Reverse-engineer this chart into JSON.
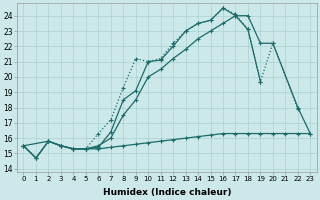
{
  "xlabel": "Humidex (Indice chaleur)",
  "bg_color": "#cce8e8",
  "line_color": "#1a6b6b",
  "grid_color": "#aad0d0",
  "xlim": [
    -0.5,
    23.5
  ],
  "ylim": [
    13.8,
    24.8
  ],
  "yticks": [
    14,
    15,
    16,
    17,
    18,
    19,
    20,
    21,
    22,
    23,
    24
  ],
  "xticks": [
    0,
    1,
    2,
    3,
    4,
    5,
    6,
    7,
    8,
    9,
    10,
    11,
    12,
    13,
    14,
    15,
    16,
    17,
    18,
    19,
    20,
    21,
    22,
    23
  ],
  "dotted_x": [
    0,
    1,
    2,
    3,
    4,
    5,
    6,
    7,
    8,
    9,
    10,
    11,
    12,
    13,
    14,
    15,
    16,
    17,
    18,
    19,
    20,
    22
  ],
  "dotted_y": [
    15.5,
    14.7,
    15.8,
    15.5,
    15.3,
    15.3,
    16.3,
    17.2,
    19.3,
    21.2,
    21.0,
    21.2,
    22.2,
    23.0,
    23.5,
    23.7,
    24.5,
    24.1,
    23.1,
    19.7,
    22.2,
    17.9
  ],
  "solid1_x": [
    0,
    1,
    2,
    3,
    4,
    5,
    6,
    7,
    8,
    9,
    10,
    11,
    12,
    13,
    14,
    15,
    16,
    17,
    18,
    19,
    20
  ],
  "solid1_y": [
    15.5,
    14.7,
    15.8,
    15.5,
    15.3,
    15.3,
    15.4,
    16.4,
    18.5,
    19.1,
    21.0,
    21.1,
    22.0,
    23.0,
    23.5,
    23.7,
    24.5,
    24.0,
    23.1,
    19.7,
    null
  ],
  "solid2_x": [
    0,
    2,
    3,
    4,
    5,
    6,
    7,
    8,
    9,
    10,
    11,
    12,
    13,
    14,
    15,
    16,
    17,
    18,
    19,
    20,
    22,
    23
  ],
  "solid2_y": [
    15.5,
    15.8,
    15.5,
    15.3,
    15.3,
    15.5,
    16.0,
    17.5,
    18.5,
    20.0,
    20.5,
    21.2,
    21.8,
    22.5,
    23.0,
    23.5,
    24.0,
    24.0,
    22.2,
    22.2,
    18.0,
    16.3
  ],
  "flat_x": [
    0,
    1,
    2,
    3,
    4,
    5,
    6,
    7,
    8,
    9,
    10,
    11,
    12,
    13,
    14,
    15,
    16,
    17,
    18,
    19,
    20,
    21,
    22,
    23
  ],
  "flat_y": [
    15.5,
    14.7,
    15.8,
    15.5,
    15.3,
    15.3,
    15.3,
    15.4,
    15.5,
    15.6,
    15.7,
    15.8,
    15.9,
    16.0,
    16.1,
    16.2,
    16.3,
    16.3,
    16.3,
    16.3,
    16.3,
    16.3,
    16.3,
    16.3
  ]
}
